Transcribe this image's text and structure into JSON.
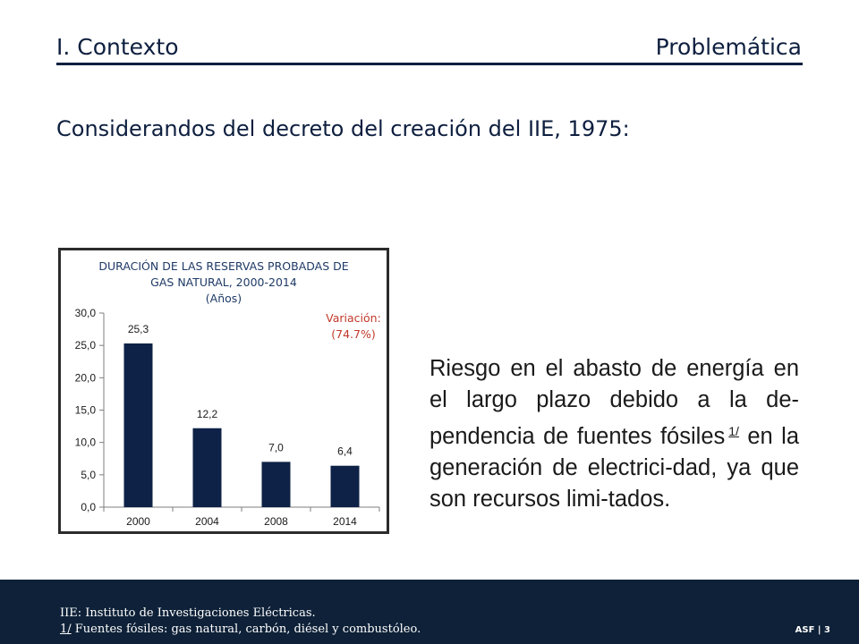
{
  "header": {
    "section": "I. Contexto",
    "topic": "Problemática"
  },
  "subtitle": "Considerandos del decreto del creación del IIE, 1975:",
  "chart_data": {
    "type": "bar",
    "title": "DURACIÓN DE LAS RESERVAS PROBADAS DE GAS NATURAL, 2000-2014",
    "unit_label": "(Años)",
    "categories": [
      "2000",
      "2004",
      "2008",
      "2014"
    ],
    "values": [
      25.3,
      12.2,
      7.0,
      6.4
    ],
    "value_labels": [
      "25,3",
      "12,2",
      "7,0",
      "6,4"
    ],
    "ylim": [
      0,
      30
    ],
    "yticks": [
      "0,0",
      "5,0",
      "10,0",
      "15,0",
      "20,0",
      "25,0",
      "30,0"
    ],
    "bar_color": "#0e2247",
    "annotation": {
      "line1": "Variación:",
      "line2": "(74.7%)",
      "color": "#c0392b"
    }
  },
  "body": {
    "text": "Riesgo en el abasto de energía en el largo plazo debido a la de-pendencia de fuentes fósiles",
    "footnote_ref": "1/",
    "text_after": "en la generación de electrici-dad, ya que son recursos limi-tados."
  },
  "footer": {
    "line1": "IIE: Instituto de Investigaciones Eléctricas.",
    "line2_ref": "1/",
    "line2_text": " Fuentes fósiles: gas natural, carbón, diésel y combustóleo.",
    "brand": "ASF | 3"
  }
}
